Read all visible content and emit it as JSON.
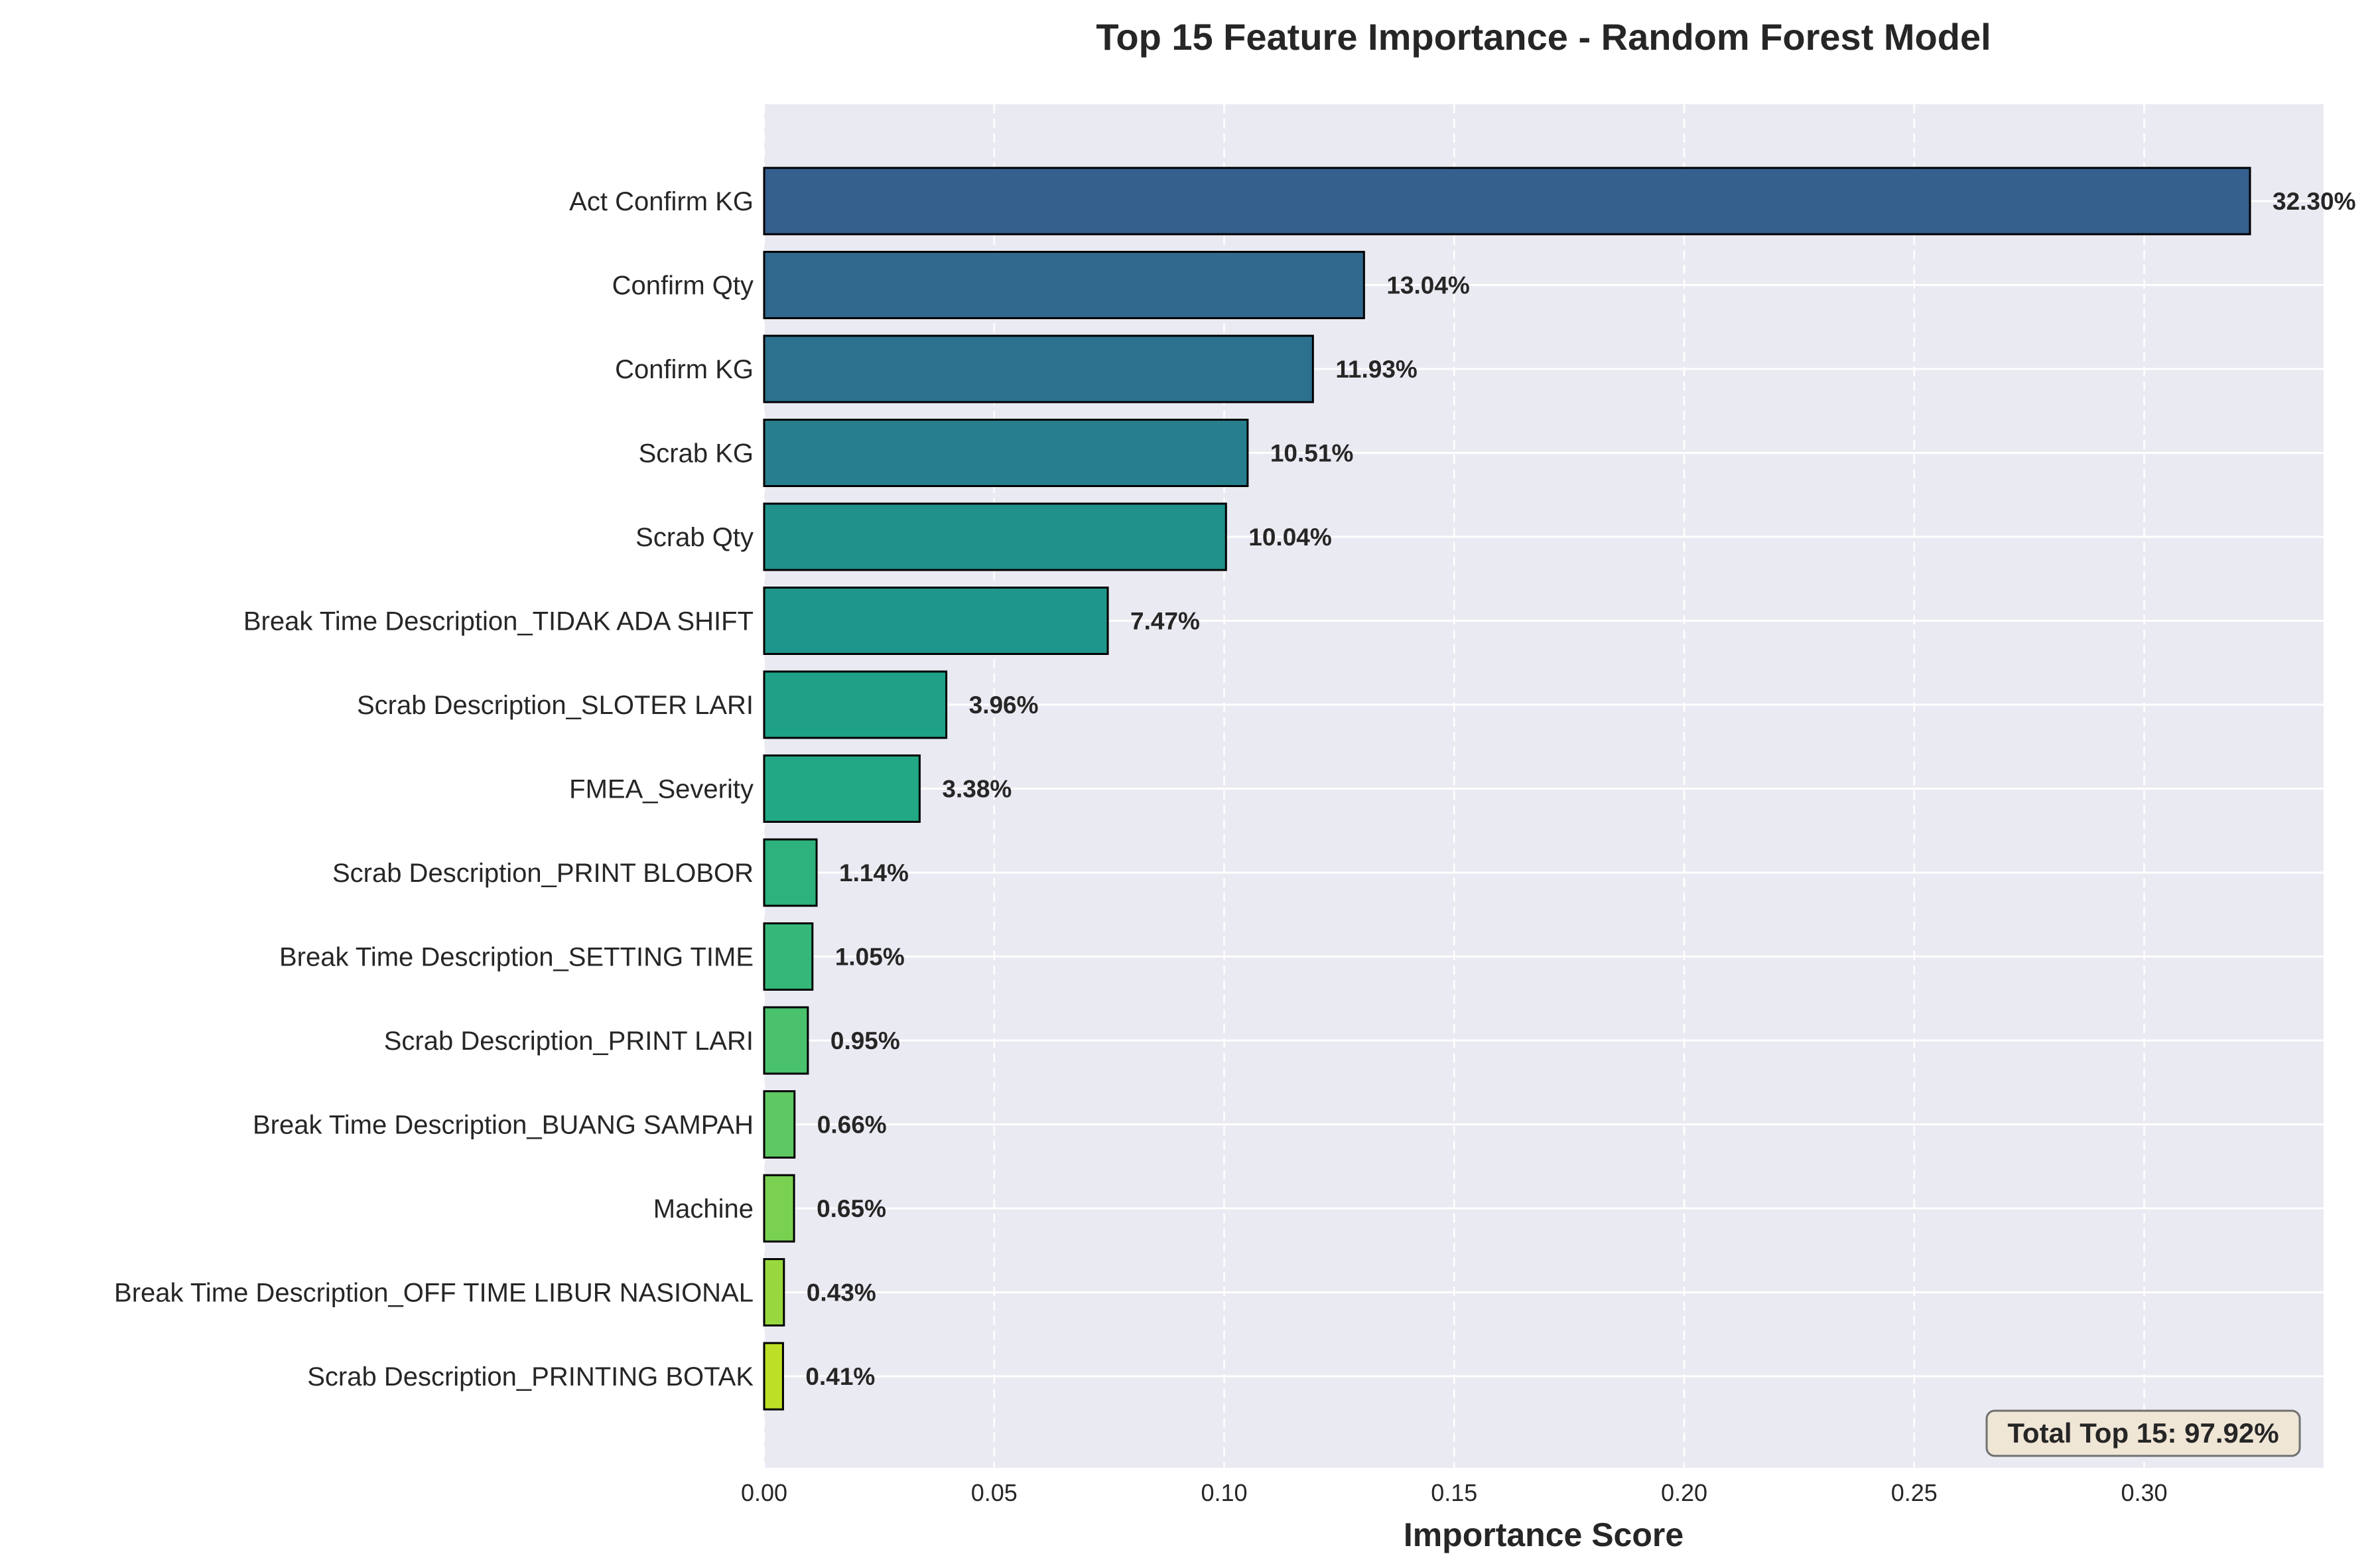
{
  "chart_data": {
    "type": "bar",
    "orientation": "horizontal",
    "title": "Top 15 Feature Importance - Random Forest Model",
    "xlabel": "Importance Score",
    "ylabel": "",
    "xlim": [
      0,
      0.339
    ],
    "xticks": [
      "0.00",
      "0.05",
      "0.10",
      "0.15",
      "0.20",
      "0.25",
      "0.30"
    ],
    "grid": true,
    "categories": [
      "Act Confirm KG",
      "Confirm Qty",
      "Confirm KG",
      "Scrab KG",
      "Scrab Qty",
      "Break Time Description_TIDAK ADA SHIFT",
      "Scrab Description_SLOTER LARI",
      "FMEA_Severity",
      "Scrab Description_PRINT BLOBOR",
      "Break Time Description_SETTING TIME",
      "Scrab Description_PRINT LARI",
      "Break Time Description_BUANG SAMPAH",
      "Machine",
      "Break Time Description_OFF TIME LIBUR NASIONAL",
      "Scrab Description_PRINTING BOTAK"
    ],
    "values": [
      0.323,
      0.1304,
      0.1193,
      0.1051,
      0.1004,
      0.0747,
      0.0396,
      0.0338,
      0.0114,
      0.0105,
      0.0095,
      0.0066,
      0.0065,
      0.0043,
      0.0041
    ],
    "data_labels": [
      "32.30%",
      "13.04%",
      "11.93%",
      "10.51%",
      "10.04%",
      "7.47%",
      "3.96%",
      "3.38%",
      "1.14%",
      "1.05%",
      "0.95%",
      "0.66%",
      "0.65%",
      "0.43%",
      "0.41%"
    ],
    "colors": [
      "#355f8d",
      "#31688e",
      "#2c718e",
      "#277f8e",
      "#21918c",
      "#1f968b",
      "#1fa188",
      "#22a884",
      "#2db27d",
      "#35b779",
      "#4ac16d",
      "#5ec962",
      "#7ad151",
      "#98d83e",
      "#bddf26"
    ],
    "annotation": "Total Top 15: 97.92%",
    "style": {
      "plot_background": "#eaeaf2",
      "grid_color": "#ffffff",
      "bar_edge_color": "#000000",
      "annotation_fill": "#f0e6d6",
      "annotation_border": "#707070"
    }
  }
}
